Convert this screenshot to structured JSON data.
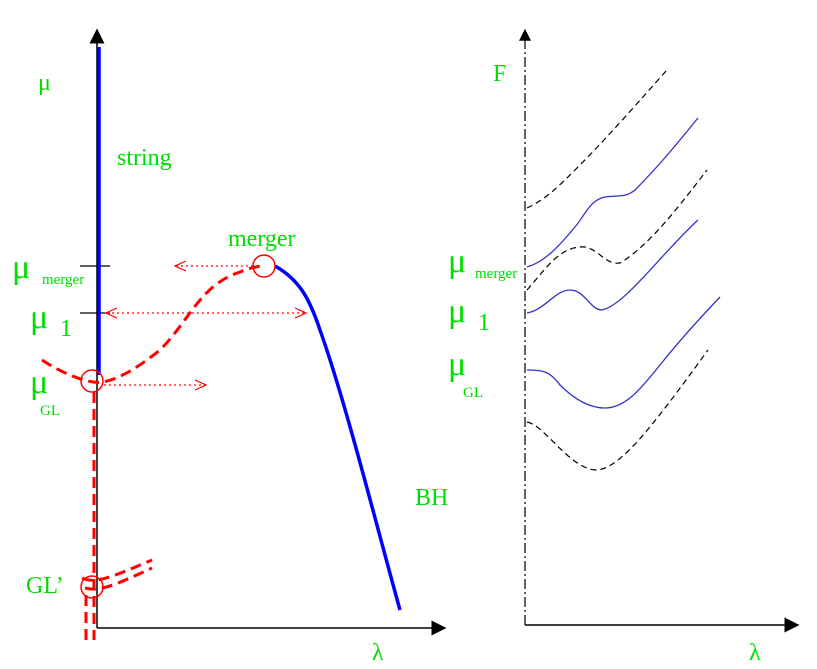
{
  "colors": {
    "label": "#00dd00",
    "string_branch": "#0000ff",
    "non_uniform": "#ff0000",
    "free_energy_curves": "#3333cc",
    "dashed_curves": "#000000",
    "axes": "#000000"
  },
  "left_panel": {
    "y_axis_label": "μ",
    "x_axis_label": "λ",
    "string_label": "string",
    "merger_label": "merger",
    "bh_label": "BH",
    "gl_prime_label": "GL’",
    "mu_merger": {
      "symbol": "μ",
      "subscript": "merger"
    },
    "mu_1": {
      "symbol": "μ",
      "subscript": "1"
    },
    "mu_gl": {
      "symbol": "μ",
      "subscript": "GL"
    }
  },
  "right_panel": {
    "y_axis_label": "F",
    "x_axis_label": "λ",
    "mu_merger": {
      "symbol": "μ",
      "subscript": "merger"
    },
    "mu_1": {
      "symbol": "μ",
      "subscript": "1"
    },
    "mu_gl": {
      "symbol": "μ",
      "subscript": "GL"
    }
  }
}
